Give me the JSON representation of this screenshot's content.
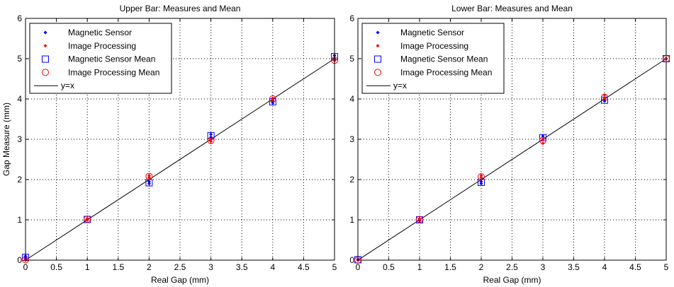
{
  "chart_data": [
    {
      "type": "scatter",
      "title": "Upper Bar: Measures and Mean",
      "xlabel": "Real Gap (mm)",
      "ylabel": "Gap Measure (mm)",
      "xlim": [
        0,
        5
      ],
      "ylim": [
        0,
        6
      ],
      "xticks": [
        "0",
        "0.5",
        "1",
        "1.5",
        "2",
        "2.5",
        "3",
        "3.5",
        "4",
        "4.5",
        "5"
      ],
      "yticks": [
        "0",
        "1",
        "2",
        "3",
        "4",
        "5",
        "6"
      ],
      "grid": true,
      "legend_position": "top-left",
      "series": [
        {
          "name": "Magnetic Sensor",
          "marker": "dot",
          "color": "#0000ff",
          "points": [
            [
              0,
              0.05
            ],
            [
              0,
              0.1
            ],
            [
              1,
              1.0
            ],
            [
              1,
              1.02
            ],
            [
              2,
              1.9
            ],
            [
              2,
              1.95
            ],
            [
              3,
              3.05
            ],
            [
              3,
              3.12
            ],
            [
              4,
              3.9
            ],
            [
              4,
              3.95
            ],
            [
              5,
              5.0
            ],
            [
              5,
              5.08
            ]
          ]
        },
        {
          "name": "Image Processing",
          "marker": "dot",
          "color": "#ff0000",
          "points": [
            [
              0,
              0.0
            ],
            [
              0,
              0.02
            ],
            [
              1,
              1.0
            ],
            [
              1,
              1.03
            ],
            [
              2,
              2.05
            ],
            [
              2,
              2.1
            ],
            [
              3,
              2.95
            ],
            [
              3,
              3.0
            ],
            [
              4,
              3.98
            ],
            [
              4,
              4.02
            ],
            [
              5,
              4.95
            ],
            [
              5,
              4.98
            ]
          ]
        },
        {
          "name": "Magnetic Sensor Mean",
          "marker": "square",
          "color": "#0000ff",
          "points": [
            [
              0,
              0.07
            ],
            [
              1,
              1.01
            ],
            [
              2,
              1.92
            ],
            [
              3,
              3.09
            ],
            [
              4,
              3.93
            ],
            [
              5,
              5.05
            ]
          ]
        },
        {
          "name": "Image Processing Mean",
          "marker": "circle",
          "color": "#ff0000",
          "points": [
            [
              0,
              0.01
            ],
            [
              1,
              1.02
            ],
            [
              2,
              2.08
            ],
            [
              3,
              2.97
            ],
            [
              4,
              4.0
            ],
            [
              5,
              4.96
            ]
          ]
        },
        {
          "name": "y=x",
          "marker": "line",
          "color": "#000000",
          "points": [
            [
              0,
              0
            ],
            [
              5,
              5
            ]
          ]
        }
      ]
    },
    {
      "type": "scatter",
      "title": "Lower Bar: Measures and Mean",
      "xlabel": "Real Gap (mm)",
      "ylabel": "",
      "xlim": [
        0,
        5
      ],
      "ylim": [
        0,
        6
      ],
      "xticks": [
        "0",
        "0.5",
        "1",
        "1.5",
        "2",
        "2.5",
        "3",
        "3.5",
        "4",
        "4.5",
        "5"
      ],
      "yticks": [
        "0",
        "1",
        "2",
        "3",
        "4",
        "5",
        "6"
      ],
      "grid": true,
      "legend_position": "top-left",
      "series": [
        {
          "name": "Magnetic Sensor",
          "marker": "dot",
          "color": "#0000ff",
          "points": [
            [
              0,
              0.0
            ],
            [
              0,
              0.02
            ],
            [
              1,
              0.98
            ],
            [
              1,
              1.02
            ],
            [
              2,
              1.9
            ],
            [
              2,
              1.95
            ],
            [
              3,
              3.0
            ],
            [
              3,
              3.08
            ],
            [
              4,
              3.95
            ],
            [
              4,
              4.0
            ],
            [
              5,
              5.0
            ]
          ]
        },
        {
          "name": "Image Processing",
          "marker": "dot",
          "color": "#ff0000",
          "points": [
            [
              0,
              0.0
            ],
            [
              1,
              1.0
            ],
            [
              1,
              1.03
            ],
            [
              2,
              2.05
            ],
            [
              2,
              2.1
            ],
            [
              3,
              2.9
            ],
            [
              3,
              3.0
            ],
            [
              4,
              4.02
            ],
            [
              4,
              4.1
            ],
            [
              5,
              5.0
            ]
          ]
        },
        {
          "name": "Magnetic Sensor Mean",
          "marker": "square",
          "color": "#0000ff",
          "points": [
            [
              0,
              0.01
            ],
            [
              1,
              1.0
            ],
            [
              2,
              1.93
            ],
            [
              3,
              3.04
            ],
            [
              4,
              3.97
            ],
            [
              5,
              5.0
            ]
          ]
        },
        {
          "name": "Image Processing Mean",
          "marker": "circle",
          "color": "#ff0000",
          "points": [
            [
              0,
              0.0
            ],
            [
              1,
              1.01
            ],
            [
              2,
              2.07
            ],
            [
              3,
              2.97
            ],
            [
              4,
              4.04
            ],
            [
              5,
              5.0
            ]
          ]
        },
        {
          "name": "y=x",
          "marker": "line",
          "color": "#000000",
          "points": [
            [
              0,
              0
            ],
            [
              5,
              5
            ]
          ]
        }
      ]
    }
  ]
}
